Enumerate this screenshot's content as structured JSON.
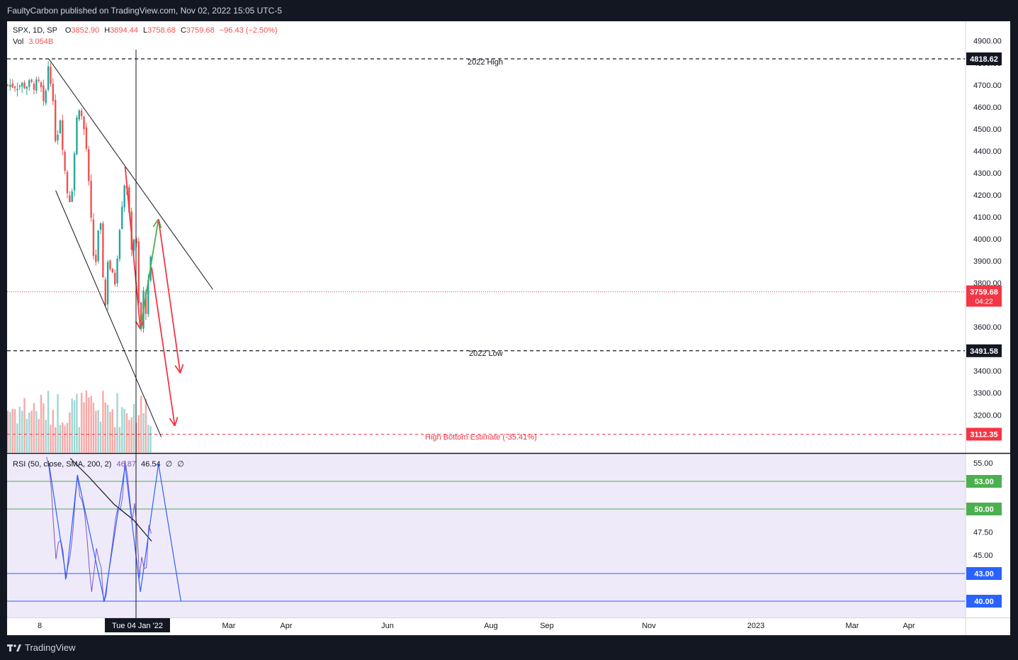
{
  "header": {
    "publisher_line": "FaultyCarbon published on TradingView.com, Nov 02, 2022 15:05 UTC-5"
  },
  "footer": {
    "brand": "TradingView",
    "logo_icon": "tradingview-logo-icon"
  },
  "legend": {
    "symbol": "SPX, 1D, SP",
    "open_label": "O",
    "open": "3852.90",
    "high_label": "H",
    "high": "3894.44",
    "low_label": "L",
    "low": "3758.68",
    "close_label": "C",
    "close": "3759.68",
    "change": "−96.43 (−2.50%)",
    "vol_label": "Vol",
    "vol": "3.054B"
  },
  "rsi_legend": {
    "name": "RSI (50, close, SMA, 200, 2)",
    "value1": "46.87",
    "value2": "46.54",
    "value3": "∅",
    "value4": "∅"
  },
  "annotations": {
    "high_label": "2022 High",
    "low_label": "2022 Low",
    "estimate_label": "High Bottom Estimate (-35.41%)"
  },
  "crosshair": {
    "date_label": "Tue 04 Jan '22"
  },
  "colors": {
    "up": "#26a69a",
    "down": "#ef5350",
    "vol_up": "#9fd6d2",
    "vol_down": "#f7a9a7",
    "rsi_line": "#7e57c2",
    "rsi_bg": "#efeaf9",
    "projection_green": "#4caf50",
    "projection_red": "#f23645",
    "blue_line": "#2962ff",
    "dark_label": "#131722"
  },
  "price_badges": [
    {
      "value": "4818.62",
      "style": "dark"
    },
    {
      "value": "3759.68",
      "sub": "04:22",
      "style": "red"
    },
    {
      "value": "3491.58",
      "style": "dark"
    },
    {
      "value": "3112.35",
      "style": "red"
    }
  ],
  "rsi_badges": [
    {
      "value": "53.00",
      "style": "green"
    },
    {
      "value": "50.00",
      "style": "green"
    },
    {
      "value": "43.00",
      "style": "blue"
    },
    {
      "value": "40.00",
      "style": "blue"
    }
  ],
  "chart_data": {
    "type": "candlestick",
    "symbol": "SPX",
    "interval": "1D",
    "price_axis": {
      "ticks": [
        "4900.00",
        "4800.00",
        "4700.00",
        "4600.00",
        "4500.00",
        "4400.00",
        "4300.00",
        "4200.00",
        "4100.00",
        "4000.00",
        "3900.00",
        "3800.00",
        "3600.00",
        "3400.00",
        "3300.00",
        "3200.00"
      ],
      "ylim": [
        3100,
        4950
      ]
    },
    "rsi_axis": {
      "ticks": [
        "55.00",
        "47.50",
        "45.00"
      ],
      "ylim": [
        39,
        56
      ]
    },
    "time_axis": {
      "ticks": [
        "8",
        "Mar",
        "Apr",
        "Jun",
        "Aug",
        "Sep",
        "Nov",
        "2023",
        "Mar",
        "Apr"
      ]
    },
    "horizontal_levels": [
      {
        "price": 4818.62,
        "label": "2022 High"
      },
      {
        "price": 3491.58,
        "label": "2022 Low"
      },
      {
        "price": 3112.35,
        "label": "High Bottom Estimate (-35.41%)"
      }
    ],
    "last_price": 3759.68,
    "close_path": [
      [
        "2021-12-08",
        4700
      ],
      [
        "2021-12-20",
        4570
      ],
      [
        "2021-12-29",
        4790
      ],
      [
        "2022-01-04",
        4793
      ],
      [
        "2022-01-24",
        4410
      ],
      [
        "2022-02-02",
        4590
      ],
      [
        "2022-02-23",
        4225
      ],
      [
        "2022-03-08",
        4170
      ],
      [
        "2022-03-29",
        4631
      ],
      [
        "2022-04-20",
        4459
      ],
      [
        "2022-05-12",
        3930
      ],
      [
        "2022-05-20",
        3901
      ],
      [
        "2022-06-01",
        4101
      ],
      [
        "2022-06-16",
        3667
      ],
      [
        "2022-06-24",
        3911
      ],
      [
        "2022-07-14",
        3790
      ],
      [
        "2022-08-01",
        4118
      ],
      [
        "2022-08-16",
        4305
      ],
      [
        "2022-08-29",
        4030
      ],
      [
        "2022-09-06",
        3908
      ],
      [
        "2022-09-12",
        4110
      ],
      [
        "2022-09-23",
        3693
      ],
      [
        "2022-09-30",
        3586
      ],
      [
        "2022-10-04",
        3791
      ],
      [
        "2022-10-13",
        3669
      ],
      [
        "2022-10-28",
        3901
      ],
      [
        "2022-11-02",
        3760
      ]
    ],
    "trendlines": [
      {
        "name": "upper",
        "from": [
          "2022-01-04",
          4818
        ],
        "to": [
          "2023-05-01",
          3770
        ]
      },
      {
        "name": "lower",
        "from": [
          "2022-01-24",
          4220
        ],
        "to": [
          "2022-11-30",
          3100
        ]
      }
    ],
    "projections": [
      {
        "color": "red",
        "points": [
          [
            "2022-08-16",
            4330
          ],
          [
            "2022-09-30",
            3590
          ]
        ]
      },
      {
        "color": "green",
        "points": [
          [
            "2022-09-30",
            3590
          ],
          [
            "2022-11-22",
            4090
          ]
        ]
      },
      {
        "color": "red",
        "points": [
          [
            "2022-11-22",
            4090
          ],
          [
            "2023-01-25",
            3390
          ]
        ]
      },
      {
        "color": "red",
        "points": [
          [
            "2022-11-02",
            3870
          ],
          [
            "2023-01-09",
            3150
          ]
        ]
      }
    ],
    "rsi": {
      "period": 50,
      "levels": [
        53,
        50,
        43,
        40
      ],
      "path": [
        [
          "2021-12-28",
          56
        ],
        [
          "2022-01-04",
          55
        ],
        [
          "2022-01-24",
          44
        ],
        [
          "2022-02-07",
          48
        ],
        [
          "2022-02-24",
          42.5
        ],
        [
          "2022-03-10",
          46
        ],
        [
          "2022-03-29",
          53.5
        ],
        [
          "2022-04-20",
          49
        ],
        [
          "2022-05-06",
          43.5
        ],
        [
          "2022-05-12",
          41.5
        ],
        [
          "2022-05-27",
          47
        ],
        [
          "2022-06-16",
          40.2
        ],
        [
          "2022-06-30",
          44
        ],
        [
          "2022-08-01",
          50.5
        ],
        [
          "2022-08-16",
          54.5
        ],
        [
          "2022-09-06",
          48
        ],
        [
          "2022-09-12",
          50.8
        ],
        [
          "2022-09-30",
          42
        ],
        [
          "2022-10-04",
          45.5
        ],
        [
          "2022-10-13",
          42.5
        ],
        [
          "2022-10-28",
          49.5
        ],
        [
          "2022-11-02",
          47
        ]
      ],
      "sma_path": [
        [
          "2022-03-08",
          55.5
        ],
        [
          "2022-05-01",
          53.5
        ],
        [
          "2022-07-15",
          50.5
        ],
        [
          "2022-09-10",
          48.8
        ],
        [
          "2022-11-02",
          46.5
        ]
      ],
      "projection": [
        [
          "2022-01-04",
          55
        ],
        [
          "2022-02-24",
          42.5
        ],
        [
          "2022-03-29",
          53.7
        ],
        [
          "2022-06-16",
          40
        ],
        [
          "2022-08-16",
          54.7
        ],
        [
          "2022-09-30",
          41
        ],
        [
          "2022-11-22",
          54.9
        ],
        [
          "2023-01-27",
          40
        ]
      ]
    }
  }
}
